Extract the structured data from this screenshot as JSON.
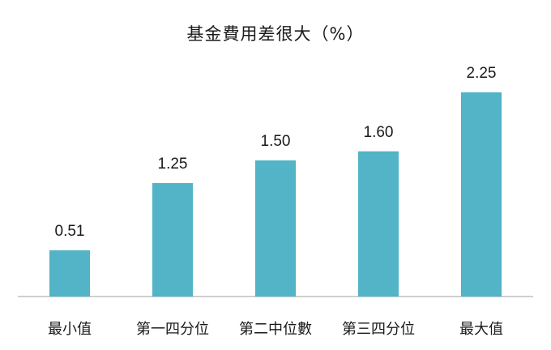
{
  "chart_data": {
    "type": "bar",
    "title": "基金費用差很大（%）",
    "categories": [
      "最小值",
      "第一四分位",
      "第二中位數",
      "第三四分位",
      "最大值"
    ],
    "values": [
      0.51,
      1.25,
      1.5,
      1.6,
      2.25
    ],
    "value_labels": [
      "0.51",
      "1.25",
      "1.50",
      "1.60",
      "2.25"
    ],
    "ylim": [
      0,
      2.5
    ],
    "grid": false,
    "bar_color": "#52b4c6",
    "axis_color": "#bfbfbf"
  }
}
